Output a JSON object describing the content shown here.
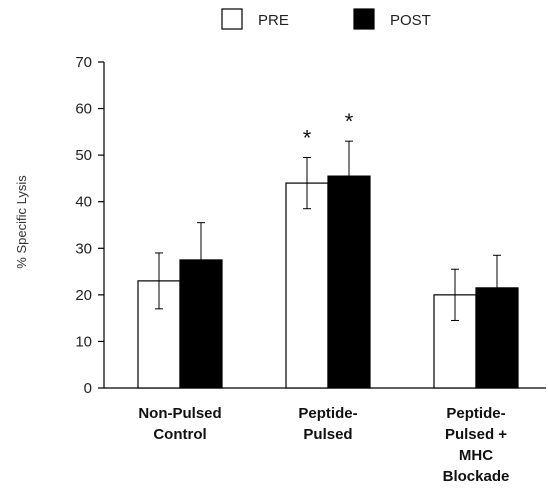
{
  "chart_data": {
    "type": "bar",
    "ylabel": "% Specific Lysis",
    "ylim": [
      0,
      70
    ],
    "yticks": [
      0,
      10,
      20,
      30,
      40,
      50,
      60,
      70
    ],
    "categories": [
      [
        "Non-Pulsed",
        "Control"
      ],
      [
        "Peptide-",
        "Pulsed"
      ],
      [
        "Peptide-",
        "Pulsed +",
        "MHC",
        "Blockade"
      ]
    ],
    "series": [
      {
        "name": "PRE",
        "values": [
          23,
          44,
          20
        ],
        "errors": [
          6,
          5.5,
          5.5
        ],
        "color": "#ffffff"
      },
      {
        "name": "POST",
        "values": [
          27.5,
          45.5,
          21.5
        ],
        "errors": [
          8,
          7.5,
          7
        ],
        "color": "#000000"
      }
    ],
    "annotations": [
      {
        "text": "*",
        "category": 1,
        "series": 0
      },
      {
        "text": "*",
        "category": 1,
        "series": 1
      }
    ],
    "legend": "top-center",
    "grid": false
  }
}
